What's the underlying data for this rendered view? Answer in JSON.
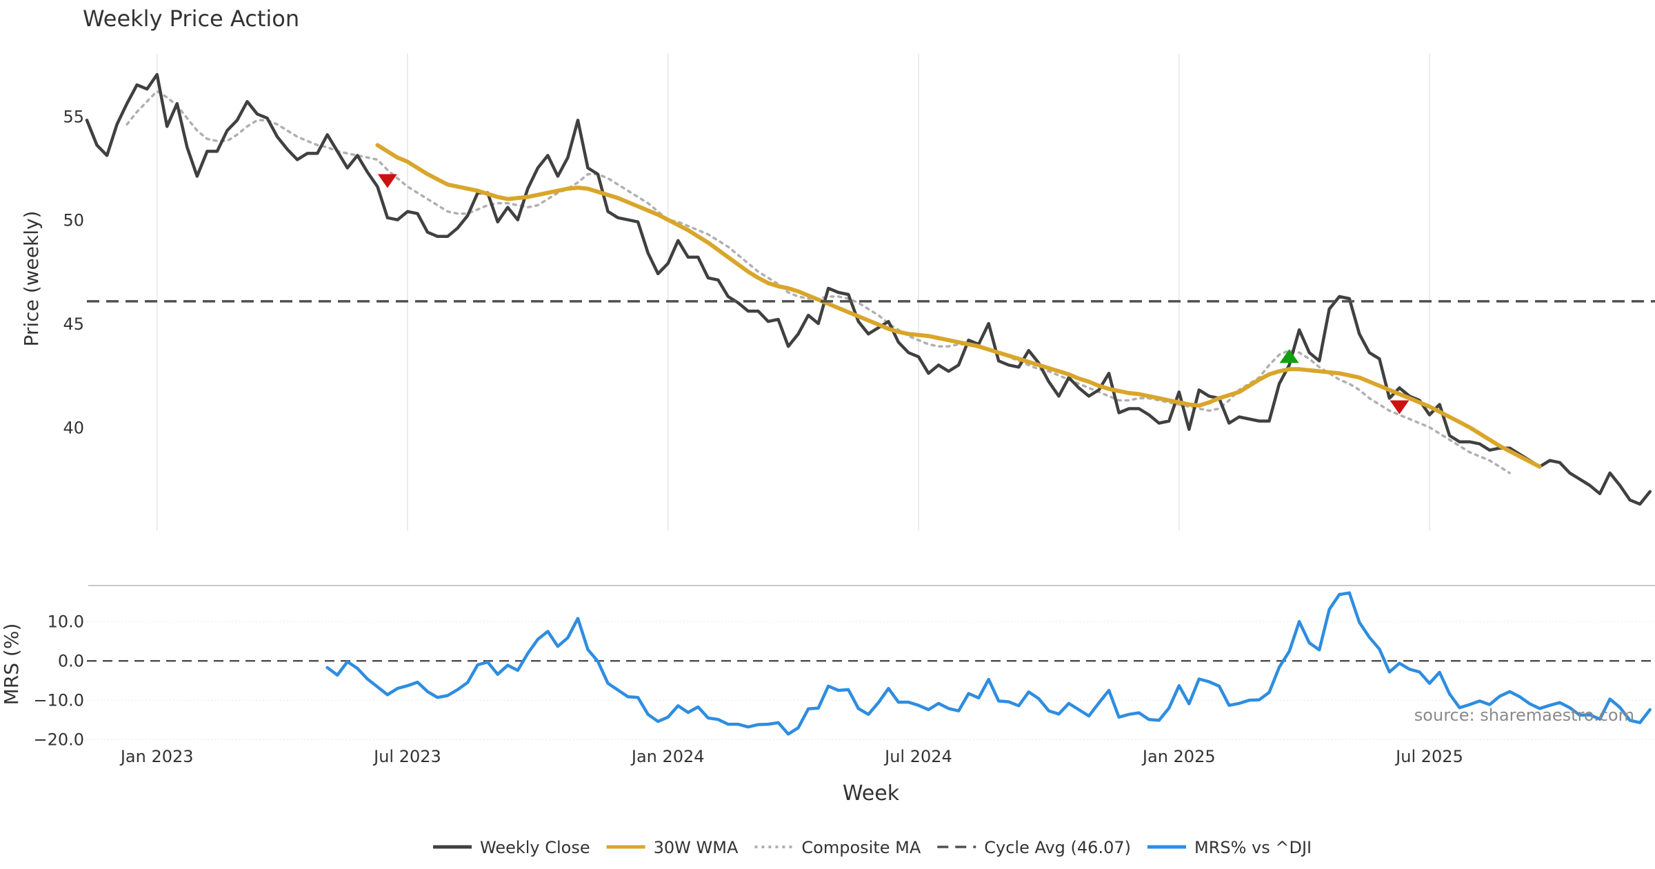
{
  "title": "Weekly Price Action",
  "source": "source: sharemaestro.com",
  "colors": {
    "close": "#404040",
    "wma": "#d9a62b",
    "composite": "#b0b0b0",
    "cycle": "#505050",
    "mrs": "#2e8de0",
    "sell": "#cc1111",
    "buy": "#12a012",
    "grid": "#e6e6e6",
    "divider": "#c8c8c8",
    "text": "#333333"
  },
  "chart_data": [
    {
      "type": "line",
      "title": "Weekly Price Action",
      "ylabel": "Price (weekly)",
      "xlabel": "",
      "x_start_week_index": 0,
      "xlim_weeks": [
        0,
        159
      ],
      "ylim": [
        35,
        58
      ],
      "yticks": [
        "40",
        "45",
        "50",
        "55"
      ],
      "x_gridlines": [
        "Jan 2023",
        "Jul 2023",
        "Jan 2024",
        "Jul 2024",
        "Jan 2025",
        "Jul 2025"
      ],
      "series": [
        {
          "name": "Weekly Close",
          "start_index": 0,
          "values": [
            54.8,
            53.6,
            53.1,
            54.6,
            55.6,
            56.5,
            56.3,
            57.0,
            54.5,
            55.6,
            53.5,
            52.1,
            53.3,
            53.3,
            54.3,
            54.8,
            55.7,
            55.1,
            54.9,
            54.0,
            53.4,
            52.9,
            53.2,
            53.2,
            54.1,
            53.3,
            52.5,
            53.1,
            52.3,
            51.6,
            50.1,
            50.0,
            50.4,
            50.3,
            49.4,
            49.2,
            49.2,
            49.6,
            50.2,
            51.3,
            51.3,
            49.9,
            50.6,
            50.0,
            51.5,
            52.5,
            53.1,
            52.1,
            53.0,
            54.8,
            52.5,
            52.2,
            50.4,
            50.1,
            50.0,
            49.9,
            48.4,
            47.4,
            47.9,
            49.0,
            48.2,
            48.2,
            47.2,
            47.1,
            46.3,
            46.0,
            45.6,
            45.6,
            45.1,
            45.2,
            43.9,
            44.5,
            45.4,
            45.0,
            46.7,
            46.5,
            46.4,
            45.1,
            44.5,
            44.8,
            45.1,
            44.1,
            43.6,
            43.4,
            42.6,
            43.0,
            42.7,
            43.0,
            44.2,
            44.0,
            45.0,
            43.2,
            43.0,
            42.9,
            43.7,
            43.1,
            42.2,
            41.5,
            42.4,
            41.9,
            41.5,
            41.8,
            42.6,
            40.7,
            40.9,
            40.9,
            40.6,
            40.2,
            40.3,
            41.7,
            39.9,
            41.8,
            41.5,
            41.4,
            40.2,
            40.5,
            40.4,
            40.3,
            40.3,
            42.1,
            43.0,
            44.7,
            43.6,
            43.2,
            45.7,
            46.3,
            46.2,
            44.5,
            43.6,
            43.3,
            41.4,
            41.9,
            41.5,
            41.3,
            40.6,
            41.1,
            39.6,
            39.3,
            39.3,
            39.2,
            38.9,
            39.0,
            39.0,
            38.7,
            38.4,
            38.1,
            38.4,
            38.3,
            37.8,
            37.5,
            37.2,
            36.8,
            37.8,
            37.2,
            36.5,
            36.3,
            36.9
          ]
        },
        {
          "name": "30W WMA",
          "start_index": 29,
          "values": [
            53.6,
            53.3,
            53.0,
            52.8,
            52.5,
            52.2,
            51.95,
            51.7,
            51.6,
            51.5,
            51.4,
            51.25,
            51.1,
            51.0,
            51.05,
            51.1,
            51.2,
            51.3,
            51.4,
            51.5,
            51.55,
            51.5,
            51.35,
            51.2,
            51.05,
            50.85,
            50.65,
            50.45,
            50.25,
            50.0,
            49.75,
            49.5,
            49.2,
            48.9,
            48.55,
            48.2,
            47.85,
            47.5,
            47.2,
            46.95,
            46.8,
            46.7,
            46.55,
            46.35,
            46.15,
            45.95,
            45.75,
            45.55,
            45.35,
            45.15,
            44.95,
            44.75,
            44.6,
            44.5,
            44.45,
            44.4,
            44.3,
            44.2,
            44.1,
            44.0,
            43.9,
            43.75,
            43.6,
            43.45,
            43.3,
            43.15,
            43.0,
            42.85,
            42.7,
            42.55,
            42.35,
            42.2,
            42.0,
            41.85,
            41.75,
            41.65,
            41.6,
            41.5,
            41.4,
            41.3,
            41.2,
            41.1,
            41.05,
            41.2,
            41.4,
            41.55,
            41.7,
            42.0,
            42.3,
            42.55,
            42.7,
            42.8,
            42.8,
            42.75,
            42.7,
            42.65,
            42.6,
            42.5,
            42.4,
            42.2,
            42.0,
            41.8,
            41.6,
            41.4,
            41.2,
            41.0,
            40.75,
            40.5,
            40.25,
            40.0,
            39.7,
            39.4,
            39.1,
            38.85,
            38.6,
            38.35,
            38.1
          ]
        },
        {
          "name": "Composite MA",
          "start_index": 4,
          "values": [
            54.6,
            55.2,
            55.7,
            56.2,
            55.9,
            55.5,
            54.9,
            54.3,
            53.9,
            53.8,
            53.8,
            54.1,
            54.5,
            54.8,
            54.8,
            54.6,
            54.3,
            54.0,
            53.8,
            53.6,
            53.5,
            53.3,
            53.2,
            53.1,
            53.0,
            52.9,
            52.4,
            52.0,
            51.6,
            51.3,
            51.0,
            50.7,
            50.4,
            50.3,
            50.3,
            50.5,
            50.7,
            50.8,
            50.8,
            50.7,
            50.6,
            50.7,
            51.0,
            51.3,
            51.5,
            51.8,
            52.2,
            52.2,
            52.0,
            51.7,
            51.4,
            51.1,
            50.8,
            50.4,
            50.0,
            49.9,
            49.7,
            49.5,
            49.3,
            49.0,
            48.7,
            48.3,
            47.9,
            47.5,
            47.2,
            46.9,
            46.5,
            46.3,
            46.2,
            46.2,
            46.3,
            46.3,
            46.2,
            46.0,
            45.7,
            45.4,
            45.0,
            44.7,
            44.4,
            44.2,
            44.0,
            43.9,
            43.9,
            44.0,
            44.0,
            43.9,
            43.8,
            43.6,
            43.4,
            43.2,
            43.0,
            42.8,
            42.7,
            42.5,
            42.3,
            42.1,
            41.9,
            41.7,
            41.5,
            41.3,
            41.3,
            41.4,
            41.4,
            41.3,
            41.2,
            41.1,
            41.0,
            40.9,
            40.8,
            40.9,
            41.3,
            41.8,
            42.1,
            42.4,
            43.0,
            43.5,
            43.7,
            43.6,
            43.3,
            42.9,
            42.6,
            42.3,
            42.1,
            41.8,
            41.4,
            41.1,
            40.8,
            40.6,
            40.4,
            40.2,
            40.0,
            39.7,
            39.4,
            39.1,
            38.8,
            38.6,
            38.4,
            38.1,
            37.8
          ]
        },
        {
          "name": "Cycle Avg (46.07)",
          "value": 46.07
        }
      ],
      "markers": [
        {
          "type": "sell",
          "week_index": 30,
          "value": 51.9
        },
        {
          "type": "buy",
          "week_index": 120,
          "value": 43.4
        },
        {
          "type": "sell",
          "week_index": 131,
          "value": 41.0
        }
      ]
    },
    {
      "type": "line",
      "title": "",
      "ylabel": "MRS (%)",
      "xlabel": "Week",
      "xlim_weeks": [
        0,
        159
      ],
      "ylim": [
        -21,
        19
      ],
      "yticks": [
        "10.0",
        "0.0",
        "−10.0",
        "−20.0"
      ],
      "ytick_values": [
        10,
        0,
        -10,
        -20
      ],
      "xticks": [
        "Jan 2023",
        "Jul 2023",
        "Jan 2024",
        "Jul 2024",
        "Jan 2025",
        "Jul 2025"
      ],
      "xtick_week_index": [
        7,
        32,
        58,
        83,
        109,
        134
      ],
      "series": [
        {
          "name": "MRS% vs ^DJI",
          "start_index": 24,
          "values": [
            -1.7,
            -3.6,
            -0.2,
            -1.9,
            -4.6,
            -6.6,
            -8.6,
            -7.0,
            -6.3,
            -5.4,
            -7.8,
            -9.3,
            -8.8,
            -7.3,
            -5.5,
            -1.0,
            -0.3,
            -3.4,
            -1.1,
            -2.4,
            1.9,
            5.5,
            7.5,
            3.7,
            5.9,
            10.8,
            2.9,
            -0.1,
            -5.7,
            -7.4,
            -9.1,
            -9.3,
            -13.6,
            -15.4,
            -14.3,
            -11.4,
            -13.1,
            -11.7,
            -14.5,
            -14.9,
            -16.1,
            -16.1,
            -16.8,
            -16.2,
            -16.1,
            -15.7,
            -18.6,
            -17.0,
            -12.2,
            -12.0,
            -6.4,
            -7.5,
            -7.3,
            -12.1,
            -13.6,
            -10.6,
            -7.0,
            -10.5,
            -10.5,
            -11.3,
            -12.4,
            -10.8,
            -12.1,
            -12.7,
            -8.3,
            -9.4,
            -4.7,
            -10.2,
            -10.4,
            -11.4,
            -7.9,
            -9.6,
            -12.7,
            -13.5,
            -10.8,
            -12.4,
            -14.0,
            -10.7,
            -7.5,
            -14.3,
            -13.6,
            -13.2,
            -14.9,
            -15.1,
            -12.0,
            -6.3,
            -10.9,
            -4.6,
            -5.3,
            -6.4,
            -11.3,
            -10.8,
            -10.0,
            -9.9,
            -8.0,
            -1.6,
            2.4,
            10.0,
            4.6,
            2.8,
            13.1,
            16.9,
            17.3,
            9.8,
            6.0,
            3.0,
            -2.8,
            -0.6,
            -2.1,
            -2.8,
            -5.7,
            -2.9,
            -8.4,
            -11.9,
            -11.1,
            -10.2,
            -11.1,
            -9.0,
            -7.8,
            -9.1,
            -10.9,
            -12.1,
            -11.3,
            -10.6,
            -11.9,
            -13.8,
            -13.7,
            -14.8,
            -9.7,
            -11.8,
            -15.1,
            -15.7,
            -12.4
          ]
        }
      ]
    }
  ],
  "legend": [
    {
      "label": "Weekly Close",
      "style": "solid",
      "color_key": "close"
    },
    {
      "label": "30W WMA",
      "style": "solid",
      "color_key": "wma"
    },
    {
      "label": "Composite MA",
      "style": "dotted",
      "color_key": "composite"
    },
    {
      "label": "Cycle Avg (46.07)",
      "style": "dashed",
      "color_key": "cycle"
    },
    {
      "label": "MRS% vs ^DJI",
      "style": "solid",
      "color_key": "mrs"
    }
  ]
}
